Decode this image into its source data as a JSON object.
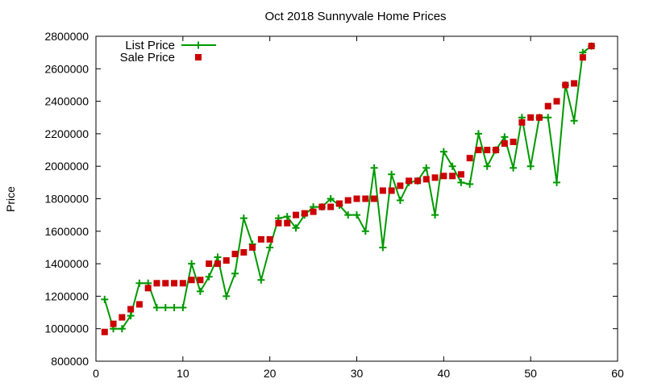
{
  "chart_data": {
    "type": "line",
    "title": "Oct 2018 Sunnyvale Home Prices",
    "xlabel": "",
    "ylabel": "Price",
    "xlim": [
      0,
      60
    ],
    "ylim": [
      800000,
      2800000
    ],
    "x_ticks": [
      "0",
      "10",
      "20",
      "30",
      "40",
      "50",
      "60"
    ],
    "y_ticks": [
      "800000",
      "1000000",
      "1200000",
      "1400000",
      "1600000",
      "1800000",
      "2000000",
      "2200000",
      "2400000",
      "2600000",
      "2800000"
    ],
    "legend_position": "top-left",
    "grid": false,
    "series": [
      {
        "name": "List Price",
        "style": "line-with-plus-markers",
        "color": "#009900",
        "x": [
          1,
          2,
          3,
          4,
          5,
          6,
          7,
          8,
          9,
          10,
          11,
          12,
          13,
          14,
          15,
          16,
          17,
          18,
          19,
          20,
          21,
          22,
          23,
          24,
          25,
          26,
          27,
          28,
          29,
          30,
          31,
          32,
          33,
          34,
          35,
          36,
          37,
          38,
          39,
          40,
          41,
          42,
          43,
          44,
          45,
          46,
          47,
          48,
          49,
          50,
          51,
          52,
          53,
          54,
          55,
          56,
          57
        ],
        "y": [
          1180000,
          1000000,
          1000000,
          1080000,
          1280000,
          1280000,
          1130000,
          1130000,
          1130000,
          1130000,
          1400000,
          1230000,
          1320000,
          1440000,
          1200000,
          1340000,
          1680000,
          1520000,
          1300000,
          1500000,
          1680000,
          1690000,
          1620000,
          1700000,
          1750000,
          1750000,
          1800000,
          1760000,
          1700000,
          1700000,
          1600000,
          1990000,
          1500000,
          1950000,
          1790000,
          1900000,
          1910000,
          1990000,
          1700000,
          2090000,
          2000000,
          1900000,
          1890000,
          2200000,
          2000000,
          2100000,
          2180000,
          1990000,
          2300000,
          2000000,
          2300000,
          2300000,
          1900000,
          2500000,
          2280000,
          2700000,
          2740000
        ]
      },
      {
        "name": "Sale Price",
        "style": "square-markers",
        "color": "#cc0000",
        "x": [
          1,
          2,
          3,
          4,
          5,
          6,
          7,
          8,
          9,
          10,
          11,
          12,
          13,
          14,
          15,
          16,
          17,
          18,
          19,
          20,
          21,
          22,
          23,
          24,
          25,
          26,
          27,
          28,
          29,
          30,
          31,
          32,
          33,
          34,
          35,
          36,
          37,
          38,
          39,
          40,
          41,
          42,
          43,
          44,
          45,
          46,
          47,
          48,
          49,
          50,
          51,
          52,
          53,
          54,
          55,
          56,
          57
        ],
        "y": [
          980000,
          1030000,
          1070000,
          1120000,
          1150000,
          1250000,
          1280000,
          1280000,
          1280000,
          1280000,
          1300000,
          1300000,
          1400000,
          1400000,
          1420000,
          1460000,
          1470000,
          1500000,
          1550000,
          1550000,
          1650000,
          1650000,
          1700000,
          1710000,
          1720000,
          1750000,
          1750000,
          1770000,
          1790000,
          1800000,
          1800000,
          1800000,
          1850000,
          1850000,
          1880000,
          1910000,
          1910000,
          1920000,
          1930000,
          1940000,
          1940000,
          1950000,
          2050000,
          2100000,
          2100000,
          2100000,
          2140000,
          2150000,
          2270000,
          2300000,
          2300000,
          2370000,
          2400000,
          2500000,
          2510000,
          2670000,
          2740000
        ]
      }
    ]
  }
}
